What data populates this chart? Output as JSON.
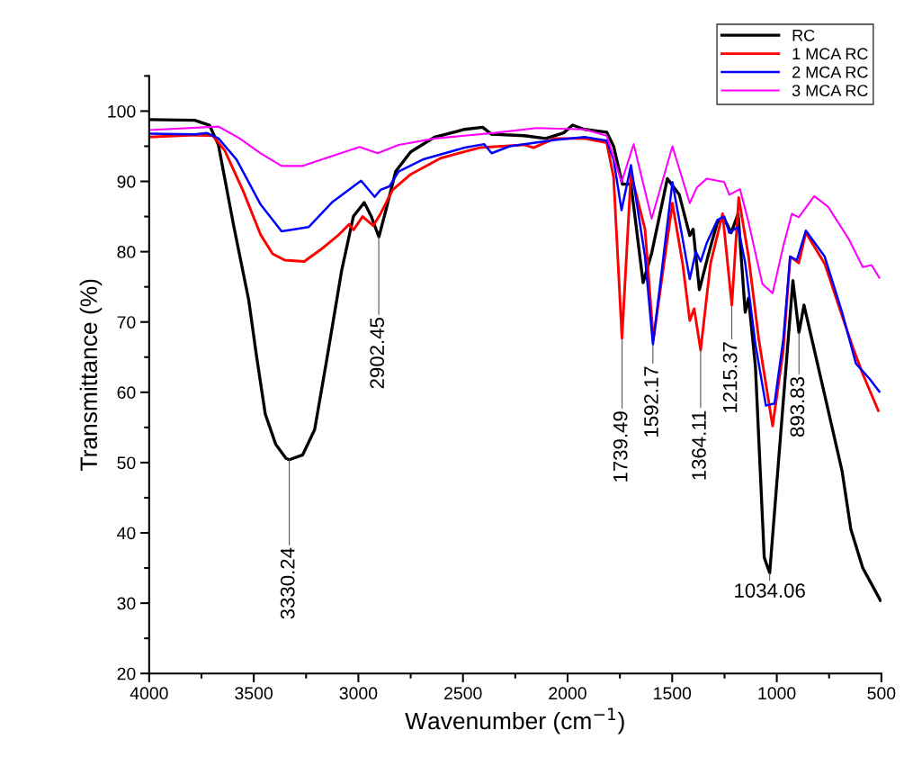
{
  "chart_data": {
    "type": "line",
    "xlabel": "Wavenumber (cm$^{−1}$)",
    "ylabel": "Transmittance (%)",
    "xlim": [
      4000,
      500
    ],
    "ylim": [
      20,
      105
    ],
    "xticks": [
      4000,
      3500,
      3000,
      2500,
      2000,
      1500,
      1000,
      500
    ],
    "yticks": [
      20,
      30,
      40,
      50,
      60,
      70,
      80,
      90,
      100
    ],
    "grid": false,
    "legend": "top right",
    "marker": "none",
    "line_style": "solid",
    "series": [
      {
        "name": "RC",
        "color": "#000000",
        "x": [
          4000,
          3782,
          3712,
          3669,
          3596,
          3524,
          3488,
          3445,
          3395,
          3346,
          3330,
          3266,
          3209,
          3152,
          3080,
          3024,
          2972,
          2938,
          2902,
          2865,
          2822,
          2750,
          2636,
          2492,
          2406,
          2363,
          2207,
          2105,
          2019,
          1976,
          1919,
          1813,
          1780,
          1738,
          1697,
          1639,
          1598,
          1523,
          1466,
          1416,
          1400,
          1370,
          1325,
          1284,
          1251,
          1218,
          1185,
          1151,
          1135,
          1102,
          1060,
          1034,
          969,
          923,
          894,
          870,
          771,
          688,
          646,
          589,
          505
        ],
        "values": [
          98.8,
          98.7,
          98.0,
          95.2,
          83.7,
          73.1,
          65.4,
          56.9,
          52.6,
          50.6,
          50.4,
          51.1,
          54.7,
          64.5,
          77.3,
          85.0,
          87.0,
          85.0,
          82.1,
          86.3,
          91.4,
          94.2,
          96.3,
          97.4,
          97.7,
          96.7,
          96.5,
          96.1,
          96.9,
          98.0,
          97.4,
          97.0,
          95.0,
          89.6,
          89.6,
          75.6,
          79.8,
          90.4,
          88.1,
          82.3,
          83.2,
          74.6,
          79.8,
          84.2,
          84.7,
          82.7,
          85.4,
          71.4,
          73.4,
          63.6,
          36.5,
          34.3,
          58.7,
          75.9,
          68.5,
          72.4,
          59.6,
          48.8,
          40.5,
          35.0,
          30.4
        ]
      },
      {
        "name": "1 MCA RC",
        "color": "#ff0000",
        "x": [
          4000,
          3782,
          3696,
          3639,
          3553,
          3467,
          3410,
          3352,
          3259,
          3180,
          3094,
          3044,
          3023,
          2980,
          2929,
          2894,
          2836,
          2750,
          2607,
          2421,
          2206,
          2163,
          2062,
          1919,
          1813,
          1780,
          1740,
          1697,
          1630,
          1590,
          1499,
          1450,
          1416,
          1395,
          1364,
          1317,
          1259,
          1215,
          1182,
          1135,
          1086,
          1020,
          969,
          936,
          895,
          861,
          771,
          688,
          638,
          589,
          515
        ],
        "values": [
          96.3,
          96.6,
          96.5,
          94.4,
          88.8,
          82.4,
          79.7,
          78.8,
          78.6,
          80.3,
          82.4,
          83.9,
          83.1,
          85.0,
          83.7,
          85.4,
          88.8,
          91.0,
          93.3,
          94.8,
          95.2,
          94.8,
          96.1,
          96.1,
          95.5,
          90.6,
          67.7,
          91.1,
          83.2,
          67.5,
          86.9,
          78.3,
          70.2,
          71.9,
          66.0,
          78.3,
          85.4,
          72.4,
          87.7,
          79.3,
          67.5,
          55.2,
          66.0,
          79.3,
          78.4,
          82.7,
          78.3,
          70.9,
          66.5,
          62.6,
          57.4
        ]
      },
      {
        "name": "2 MCA RC",
        "color": "#0000ff",
        "x": [
          4000,
          3782,
          3725,
          3668,
          3582,
          3467,
          3367,
          3238,
          3123,
          2987,
          2922,
          2894,
          2851,
          2808,
          2693,
          2492,
          2399,
          2363,
          2277,
          2062,
          1919,
          1813,
          1780,
          1742,
          1697,
          1630,
          1592,
          1499,
          1450,
          1416,
          1387,
          1364,
          1334,
          1284,
          1251,
          1227,
          1185,
          1151,
          1102,
          1052,
          1011,
          969,
          936,
          904,
          861,
          771,
          688,
          622,
          556,
          510
        ],
        "values": [
          96.8,
          96.7,
          96.9,
          96.1,
          93.1,
          86.7,
          82.9,
          83.5,
          87.1,
          90.1,
          87.8,
          88.8,
          89.3,
          91.4,
          93.1,
          94.8,
          95.3,
          94.0,
          95.0,
          95.9,
          96.3,
          95.8,
          93.1,
          85.9,
          92.3,
          79.3,
          66.8,
          89.9,
          81.8,
          76.1,
          80.0,
          78.6,
          81.3,
          84.5,
          85.0,
          82.7,
          83.5,
          78.4,
          66.8,
          58.1,
          58.4,
          67.5,
          79.3,
          78.8,
          83.0,
          79.3,
          71.4,
          64.1,
          61.9,
          60.1
        ]
      },
      {
        "name": "3 MCA RC",
        "color": "#ff00ff",
        "x": [
          4000,
          3668,
          3567,
          3467,
          3367,
          3266,
          3137,
          2994,
          2908,
          2808,
          2636,
          2349,
          2148,
          1919,
          1813,
          1742,
          1684,
          1598,
          1499,
          1416,
          1383,
          1334,
          1251,
          1227,
          1176,
          1135,
          1069,
          1020,
          969,
          928,
          895,
          821,
          755,
          656,
          589,
          547,
          510
        ],
        "values": [
          97.3,
          97.8,
          96.1,
          94.0,
          92.2,
          92.2,
          93.5,
          94.9,
          94.0,
          95.2,
          96.1,
          96.9,
          97.6,
          97.4,
          96.5,
          89.9,
          95.3,
          84.7,
          95.0,
          86.9,
          89.1,
          90.4,
          89.9,
          88.1,
          88.9,
          84.2,
          75.4,
          74.1,
          80.8,
          85.4,
          84.9,
          87.9,
          86.4,
          81.8,
          77.8,
          78.1,
          76.3
        ]
      }
    ],
    "annotations": [
      {
        "text": "3330.24",
        "x": 3330.24,
        "y": 50.4
      },
      {
        "text": "2902.45",
        "x": 2902.45,
        "y": 82.1
      },
      {
        "text": "1739.49",
        "x": 1739.49,
        "y": 67.7
      },
      {
        "text": "1592.17",
        "x": 1592.17,
        "y": 66.8
      },
      {
        "text": "1364.11",
        "x": 1364.11,
        "y": 66.0
      },
      {
        "text": "1215.37",
        "x": 1215.37,
        "y": 72.4
      },
      {
        "text": "893.83",
        "x": 893.83,
        "y": 68.5
      },
      {
        "text": "1034.06",
        "x": 1034.06,
        "y": 34.3
      }
    ]
  }
}
